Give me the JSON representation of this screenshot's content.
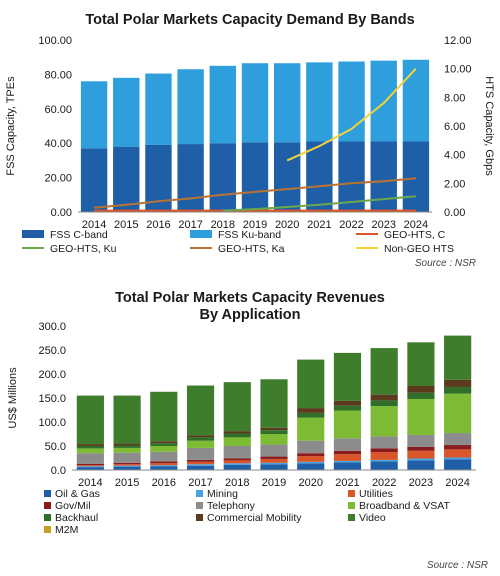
{
  "chart_data": [
    {
      "type": "bar",
      "title": "Total Polar Markets Capacity Demand By Bands",
      "ylabel": "FSS Capacity, TPEs",
      "ylabel_right": "HTS Capacity, Gbps",
      "source": "Source : NSR",
      "categories": [
        "2014",
        "2015",
        "2016",
        "2017",
        "2018",
        "2019",
        "2020",
        "2021",
        "2022",
        "2023",
        "2024"
      ],
      "ylim": [
        0,
        100
      ],
      "yticks": [
        "0.00",
        "20.00",
        "40.00",
        "60.00",
        "80.00",
        "100.00"
      ],
      "ylim_right": [
        0,
        12
      ],
      "yticks_right": [
        "0.00",
        "2.00",
        "4.00",
        "6.00",
        "8.00",
        "10.00",
        "12.00"
      ],
      "stack_series": [
        {
          "name": "FSS C-band",
          "color": "#1f5fa8",
          "values": [
            37,
            38,
            39,
            39.5,
            40,
            40.5,
            40.5,
            41,
            41,
            41,
            41
          ]
        },
        {
          "name": "FSS Ku-band",
          "color": "#2e9fdc",
          "values": [
            39,
            40,
            41.5,
            43.5,
            45,
            46,
            46,
            46,
            46.5,
            47,
            47.5
          ]
        }
      ],
      "line_series": [
        {
          "name": "GEO-HTS, C",
          "color": "#d9562b",
          "axis": "right",
          "values": [
            0.1,
            0.1,
            0.1,
            0.1,
            0.1,
            0.1,
            0.1,
            0.1,
            0.1,
            0.1,
            0.1
          ]
        },
        {
          "name": "GEO-HTS, Ku",
          "color": "#6aa84f",
          "axis": "right",
          "values": [
            null,
            null,
            null,
            null,
            0.1,
            0.2,
            0.35,
            0.5,
            0.7,
            0.9,
            1.1
          ]
        },
        {
          "name": "GEO-HTS, Ka",
          "color": "#b87333",
          "axis": "right",
          "values": [
            0.3,
            0.5,
            0.75,
            0.95,
            1.2,
            1.4,
            1.6,
            1.8,
            2.0,
            2.15,
            2.35
          ]
        },
        {
          "name": "Non-GEO HTS",
          "color": "#f2d13a",
          "axis": "right",
          "values": [
            null,
            null,
            null,
            null,
            null,
            null,
            3.6,
            4.6,
            5.8,
            7.6,
            10.0
          ]
        }
      ],
      "legend_order": [
        "FSS C-band",
        "FSS Ku-band",
        "GEO-HTS, C",
        "GEO-HTS, Ku",
        "GEO-HTS, Ka",
        "Non-GEO HTS"
      ]
    },
    {
      "type": "bar",
      "title": "Total Polar Markets Capacity Revenues By Application",
      "ylabel": "US$ Millions",
      "source": "Source : NSR",
      "categories": [
        "2014",
        "2015",
        "2016",
        "2017",
        "2018",
        "2019",
        "2020",
        "2021",
        "2022",
        "2023",
        "2024"
      ],
      "ylim": [
        0,
        300
      ],
      "yticks": [
        "0.0",
        "50.0",
        "100.0",
        "150.0",
        "200.0",
        "250.0",
        "300.0"
      ],
      "stack_series": [
        {
          "name": "Oil & Gas",
          "color": "#1f5fa8",
          "values": [
            6,
            7,
            8,
            9,
            11,
            12,
            14,
            16,
            18,
            20,
            22
          ]
        },
        {
          "name": "Mining",
          "color": "#4aa3df",
          "values": [
            2,
            2,
            2,
            3,
            3,
            3,
            3,
            3,
            3,
            4,
            4
          ]
        },
        {
          "name": "Utilities",
          "color": "#d9562b",
          "values": [
            2,
            3,
            4,
            5,
            6,
            8,
            12,
            14,
            16,
            16,
            17
          ]
        },
        {
          "name": "Gov/Mil",
          "color": "#8b1c1c",
          "values": [
            3,
            3,
            4,
            4,
            4,
            5,
            6,
            7,
            8,
            8,
            9
          ]
        },
        {
          "name": "Telephony",
          "color": "#8c8c8c",
          "values": [
            22,
            21,
            20,
            25,
            26,
            25,
            26,
            26,
            25,
            25,
            25
          ]
        },
        {
          "name": "Broadband & VSAT",
          "color": "#7dbb34",
          "values": [
            10,
            10,
            12,
            15,
            18,
            22,
            48,
            58,
            63,
            75,
            82
          ]
        },
        {
          "name": "Backhaul",
          "color": "#2f6f2a",
          "values": [
            5,
            5,
            6,
            7,
            8,
            8,
            10,
            10,
            12,
            13,
            14
          ]
        },
        {
          "name": "Commercial Mobility",
          "color": "#5c3a1e",
          "values": [
            4,
            4,
            4,
            4,
            5,
            5,
            10,
            10,
            12,
            14,
            15
          ]
        },
        {
          "name": "Video",
          "color": "#3d7d2c",
          "values": [
            101,
            100,
            103,
            104,
            102,
            101,
            101,
            100,
            97,
            91,
            92
          ]
        },
        {
          "name": "M2M",
          "color": "#c7a020",
          "values": [
            0,
            0,
            0,
            0,
            0,
            0,
            0,
            0,
            0,
            0,
            0
          ]
        }
      ],
      "legend_order": [
        "Oil & Gas",
        "Mining",
        "Utilities",
        "Gov/Mil",
        "Telephony",
        "Broadband & VSAT",
        "Backhaul",
        "Commercial Mobility",
        "Video",
        "M2M"
      ]
    }
  ]
}
